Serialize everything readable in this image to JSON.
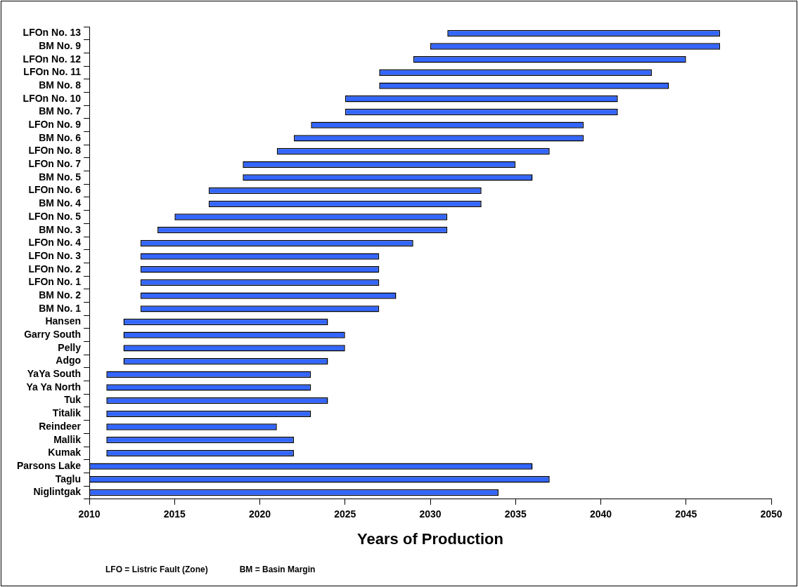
{
  "chart_data": {
    "type": "bar",
    "orientation": "horizontal",
    "xlabel": "Years of Production",
    "categories": [
      "LFOn No. 13",
      "BM No. 9",
      "LFOn No. 12",
      "LFOn No. 11",
      "BM No. 8",
      "LFOn No. 10",
      "BM No. 7",
      "LFOn No. 9",
      "BM No. 6",
      "LFOn No. 8",
      "LFOn No. 7",
      "BM No. 5",
      "LFOn No. 6",
      "BM No. 4",
      "LFOn No. 5",
      "BM No. 3",
      "LFOn No. 4",
      "LFOn No. 3",
      "LFOn No. 2",
      "LFOn No. 1",
      "BM No. 2",
      "BM No. 1",
      "Hansen",
      "Garry South",
      "Pelly",
      "Adgo",
      "YaYa South",
      "Ya Ya North",
      "Tuk",
      "Titalik",
      "Reindeer",
      "Mallik",
      "Kumak",
      "Parsons Lake",
      "Taglu",
      "Niglintgak"
    ],
    "base": [
      2031,
      2030,
      2029,
      2027,
      2027,
      2025,
      2025,
      2023,
      2022,
      2021,
      2019,
      2019,
      2017,
      2017,
      2015,
      2014,
      2013,
      2013,
      2013,
      2013,
      2013,
      2013,
      2012,
      2012,
      2012,
      2012,
      2011,
      2011,
      2011,
      2011,
      2011,
      2011,
      2011,
      2010,
      2010,
      2010
    ],
    "values": [
      16,
      17,
      16,
      16,
      17,
      16,
      16,
      16,
      17,
      16,
      16,
      17,
      16,
      16,
      16,
      17,
      16,
      14,
      14,
      14,
      15,
      14,
      12,
      13,
      13,
      12,
      12,
      12,
      13,
      12,
      10,
      11,
      11,
      26,
      27,
      24
    ],
    "color": "#3366ff",
    "xlim": [
      2010,
      2050
    ],
    "xticks": [
      2010,
      2015,
      2020,
      2025,
      2030,
      2035,
      2040,
      2045,
      2050
    ],
    "grid": false,
    "legend": false,
    "annotations": [
      "LFO = Listric Fault (Zone)",
      "BM = Basin Margin"
    ]
  }
}
